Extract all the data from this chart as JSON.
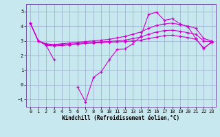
{
  "bg_color": "#c8e8f0",
  "grid_color": "#99aacc",
  "line_color": "#cc00cc",
  "xlabel": "Windchill (Refroidissement éolien,°C)",
  "ylim": [
    -1.5,
    5.5
  ],
  "xlim": [
    -0.5,
    23.5
  ],
  "yticks": [
    -1,
    0,
    1,
    2,
    3,
    4,
    5
  ],
  "xticks": [
    0,
    1,
    2,
    3,
    4,
    5,
    6,
    7,
    8,
    9,
    10,
    11,
    12,
    13,
    14,
    15,
    16,
    17,
    18,
    19,
    20,
    21,
    22,
    23
  ],
  "y_main": [
    4.2,
    3.0,
    2.7,
    1.7,
    null,
    null,
    -0.15,
    -1.15,
    0.5,
    0.9,
    1.7,
    2.4,
    2.45,
    2.8,
    3.3,
    4.8,
    4.95,
    4.4,
    4.5,
    4.15,
    3.95,
    3.15,
    2.45,
    2.95
  ],
  "y_up": [
    4.2,
    3.0,
    2.8,
    2.75,
    2.8,
    2.85,
    2.9,
    2.95,
    3.0,
    3.05,
    3.1,
    3.2,
    3.3,
    3.45,
    3.6,
    3.85,
    4.05,
    4.15,
    4.2,
    4.1,
    4.0,
    3.85,
    3.15,
    3.0
  ],
  "y_mid": [
    4.2,
    3.0,
    2.75,
    2.7,
    2.73,
    2.77,
    2.82,
    2.87,
    2.9,
    2.93,
    2.96,
    3.0,
    3.05,
    3.15,
    3.25,
    3.45,
    3.6,
    3.7,
    3.72,
    3.65,
    3.55,
    3.45,
    2.98,
    2.95
  ],
  "y_low": [
    4.2,
    3.0,
    2.7,
    2.65,
    2.68,
    2.72,
    2.77,
    2.82,
    2.85,
    2.87,
    2.89,
    2.92,
    2.95,
    3.0,
    3.05,
    3.15,
    3.25,
    3.35,
    3.38,
    3.3,
    3.22,
    3.1,
    2.52,
    2.88
  ]
}
